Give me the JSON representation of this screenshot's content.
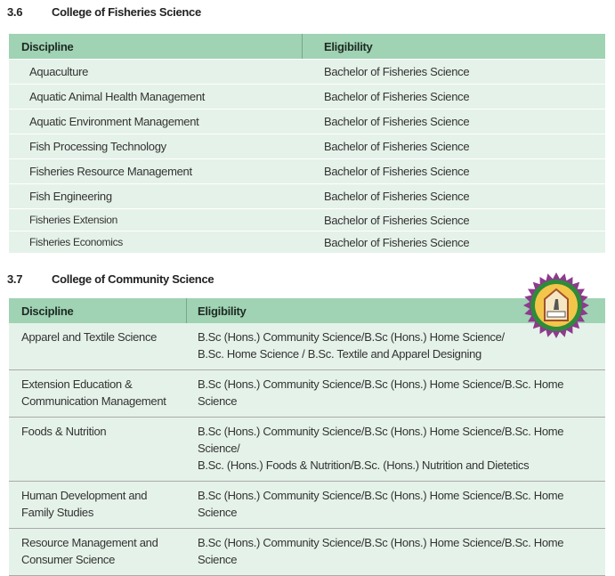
{
  "sections": [
    {
      "number": "3.6",
      "title": "College of Fisheries Science",
      "headers": [
        "Discipline",
        "Eligibility"
      ],
      "rows": [
        [
          "Aquaculture",
          "Bachelor of Fisheries Science"
        ],
        [
          "Aquatic Animal Health Management",
          "Bachelor of Fisheries Science"
        ],
        [
          "Aquatic Environment Management",
          "Bachelor of Fisheries Science"
        ],
        [
          "Fish Processing Technology",
          "Bachelor of Fisheries Science"
        ],
        [
          "Fisheries Resource Management",
          "Bachelor of Fisheries Science"
        ],
        [
          "Fish Engineering",
          "Bachelor of Fisheries Science"
        ],
        [
          "Fisheries Extension",
          "Bachelor of Fisheries Science"
        ],
        [
          "Fisheries Economics",
          "Bachelor of Fisheries Science"
        ]
      ]
    },
    {
      "number": "3.7",
      "title": "College of Community Science",
      "headers": [
        "Discipline",
        "Eligibility"
      ],
      "rows": [
        [
          [
            "Apparel and Textile Science"
          ],
          [
            "B.Sc (Hons.) Community Science/B.Sc (Hons.) Home Science/",
            "B.Sc. Home Science / B.Sc. Textile and Apparel Designing"
          ]
        ],
        [
          [
            "Extension Education &",
            "Communication Management"
          ],
          [
            "B.Sc (Hons.) Community Science/B.Sc (Hons.) Home Science/B.Sc. Home Science"
          ]
        ],
        [
          [
            "Foods & Nutrition"
          ],
          [
            "B.Sc (Hons.) Community Science/B.Sc (Hons.) Home Science/B.Sc. Home Science/",
            "B.Sc. (Hons.) Foods & Nutrition/B.Sc. (Hons.) Nutrition and Dietetics"
          ]
        ],
        [
          [
            "Human Development and",
            "Family Studies"
          ],
          [
            "B.Sc (Hons.) Community Science/B.Sc (Hons.) Home Science/B.Sc. Home Science"
          ]
        ],
        [
          [
            "Resource Management and",
            "Consumer Science"
          ],
          [
            "B.Sc (Hons.) Community Science/B.Sc (Hons.) Home Science/B.Sc. Home Science"
          ]
        ]
      ]
    }
  ],
  "colors": {
    "header": "#9fd3b3",
    "row": "#e5f2e9"
  },
  "logo": {
    "icon": "university-seal-icon"
  }
}
